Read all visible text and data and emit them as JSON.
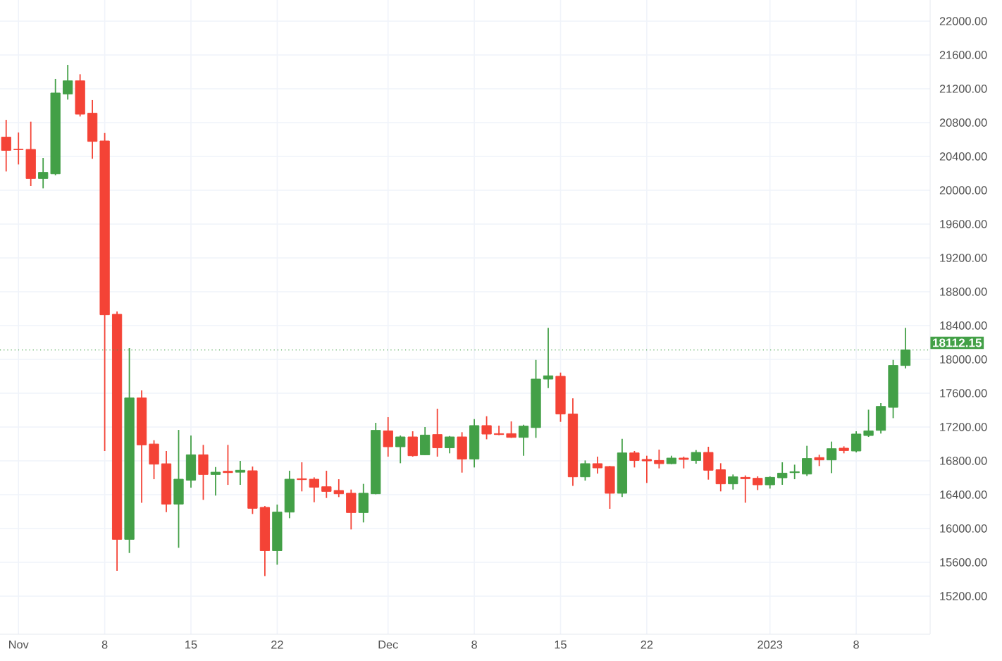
{
  "chart_data": {
    "type": "candlestick",
    "x": [
      "2022-10-31",
      "2022-11-01",
      "2022-11-02",
      "2022-11-03",
      "2022-11-04",
      "2022-11-05",
      "2022-11-06",
      "2022-11-07",
      "2022-11-08",
      "2022-11-09",
      "2022-11-10",
      "2022-11-11",
      "2022-11-12",
      "2022-11-13",
      "2022-11-14",
      "2022-11-15",
      "2022-11-16",
      "2022-11-17",
      "2022-11-18",
      "2022-11-19",
      "2022-11-20",
      "2022-11-21",
      "2022-11-22",
      "2022-11-23",
      "2022-11-24",
      "2022-11-25",
      "2022-11-26",
      "2022-11-27",
      "2022-11-28",
      "2022-11-29",
      "2022-11-30",
      "2022-12-01",
      "2022-12-02",
      "2022-12-03",
      "2022-12-04",
      "2022-12-05",
      "2022-12-06",
      "2022-12-07",
      "2022-12-08",
      "2022-12-09",
      "2022-12-10",
      "2022-12-11",
      "2022-12-12",
      "2022-12-13",
      "2022-12-14",
      "2022-12-15",
      "2022-12-16",
      "2022-12-17",
      "2022-12-18",
      "2022-12-19",
      "2022-12-20",
      "2022-12-21",
      "2022-12-22",
      "2022-12-23",
      "2022-12-24",
      "2022-12-25",
      "2022-12-26",
      "2022-12-27",
      "2022-12-28",
      "2022-12-29",
      "2022-12-30",
      "2022-12-31",
      "2023-01-01",
      "2023-01-02",
      "2023-01-03",
      "2023-01-04",
      "2023-01-05",
      "2023-01-06",
      "2023-01-07",
      "2023-01-08",
      "2023-01-09",
      "2023-01-10",
      "2023-01-11",
      "2023-01-12"
    ],
    "ohlc": [
      [
        20628,
        20833,
        20222,
        20472
      ],
      [
        20485,
        20683,
        20305,
        20480
      ],
      [
        20483,
        20811,
        20050,
        20139
      ],
      [
        20139,
        20383,
        20022,
        20211
      ],
      [
        20194,
        21317,
        20178,
        21150
      ],
      [
        21139,
        21483,
        21072,
        21294
      ],
      [
        21294,
        21372,
        20872,
        20900
      ],
      [
        20911,
        21067,
        20372,
        20578
      ],
      [
        20583,
        20678,
        16916,
        18528
      ],
      [
        18533,
        18566,
        15500,
        15872
      ],
      [
        15872,
        18133,
        15711,
        17544
      ],
      [
        17544,
        17633,
        16305,
        16989
      ],
      [
        16999,
        17044,
        16583,
        16761
      ],
      [
        16766,
        16916,
        16194,
        16289
      ],
      [
        16289,
        17166,
        15772,
        16583
      ],
      [
        16572,
        17100,
        16483,
        16872
      ],
      [
        16872,
        16989,
        16339,
        16639
      ],
      [
        16639,
        16727,
        16389,
        16666
      ],
      [
        16677,
        16989,
        16516,
        16661
      ],
      [
        16666,
        16800,
        16516,
        16689
      ],
      [
        16683,
        16733,
        16172,
        16239
      ],
      [
        16250,
        16266,
        15438,
        15738
      ],
      [
        15738,
        16283,
        15572,
        16194
      ],
      [
        16194,
        16683,
        16122,
        16583
      ],
      [
        16589,
        16783,
        16439,
        16578
      ],
      [
        16583,
        16605,
        16311,
        16489
      ],
      [
        16494,
        16683,
        16361,
        16439
      ],
      [
        16450,
        16583,
        16372,
        16411
      ],
      [
        16417,
        16461,
        15989,
        16189
      ],
      [
        16189,
        16528,
        16072,
        16417
      ],
      [
        16411,
        17250,
        16405,
        17161
      ],
      [
        17155,
        17317,
        16850,
        16967
      ],
      [
        16967,
        17100,
        16772,
        17083
      ],
      [
        17083,
        17150,
        16850,
        16861
      ],
      [
        16872,
        17200,
        16870,
        17105
      ],
      [
        17111,
        17417,
        16850,
        16955
      ],
      [
        16955,
        17094,
        16889,
        17083
      ],
      [
        17083,
        17139,
        16661,
        16822
      ],
      [
        16822,
        17294,
        16722,
        17217
      ],
      [
        17217,
        17328,
        17055,
        17117
      ],
      [
        17122,
        17217,
        17105,
        17111
      ],
      [
        17122,
        17267,
        17072,
        17078
      ],
      [
        17078,
        17228,
        16861,
        17211
      ],
      [
        17194,
        17994,
        17072,
        17767
      ],
      [
        17767,
        18372,
        17661,
        17806
      ],
      [
        17800,
        17844,
        17261,
        17355
      ],
      [
        17355,
        17539,
        16505,
        16611
      ],
      [
        16611,
        16805,
        16567,
        16767
      ],
      [
        16767,
        16850,
        16650,
        16717
      ],
      [
        16733,
        16740,
        16233,
        16417
      ],
      [
        16417,
        17061,
        16372,
        16894
      ],
      [
        16894,
        16917,
        16722,
        16805
      ],
      [
        16817,
        16861,
        16539,
        16800
      ],
      [
        16805,
        16933,
        16711,
        16767
      ],
      [
        16767,
        16861,
        16761,
        16833
      ],
      [
        16833,
        16850,
        16711,
        16817
      ],
      [
        16805,
        16928,
        16767,
        16900
      ],
      [
        16900,
        16967,
        16578,
        16689
      ],
      [
        16695,
        16772,
        16439,
        16528
      ],
      [
        16528,
        16639,
        16461,
        16611
      ],
      [
        16605,
        16628,
        16305,
        16589
      ],
      [
        16594,
        16617,
        16455,
        16517
      ],
      [
        16517,
        16617,
        16472,
        16605
      ],
      [
        16600,
        16783,
        16517,
        16655
      ],
      [
        16661,
        16755,
        16583,
        16672
      ],
      [
        16644,
        16978,
        16622,
        16828
      ],
      [
        16839,
        16872,
        16739,
        16811
      ],
      [
        16811,
        17028,
        16655,
        16944
      ],
      [
        16950,
        16972,
        16889,
        16922
      ],
      [
        16917,
        17150,
        16900,
        17117
      ],
      [
        17100,
        17405,
        17083,
        17155
      ],
      [
        17161,
        17483,
        17122,
        17444
      ],
      [
        17433,
        17994,
        17305,
        17928
      ],
      [
        17928,
        18372,
        17894,
        18112.15
      ]
    ],
    "colors": [
      "#f44336",
      "#f44336",
      "#f44336",
      "#43a047",
      "#43a047",
      "#43a047",
      "#f44336",
      "#f44336",
      "#f44336",
      "#f44336",
      "#43a047",
      "#f44336",
      "#f44336",
      "#f44336",
      "#43a047",
      "#43a047",
      "#f44336",
      "#43a047",
      "#f44336",
      "#43a047",
      "#f44336",
      "#f44336",
      "#43a047",
      "#43a047",
      "#f44336",
      "#f44336",
      "#f44336",
      "#f44336",
      "#f44336",
      "#43a047",
      "#43a047",
      "#f44336",
      "#43a047",
      "#f44336",
      "#43a047",
      "#f44336",
      "#43a047",
      "#f44336",
      "#43a047",
      "#f44336",
      "#f44336",
      "#f44336",
      "#43a047",
      "#43a047",
      "#43a047",
      "#f44336",
      "#f44336",
      "#43a047",
      "#f44336",
      "#f44336",
      "#43a047",
      "#f44336",
      "#f44336",
      "#f44336",
      "#43a047",
      "#f44336",
      "#43a047",
      "#f44336",
      "#f44336",
      "#43a047",
      "#f44336",
      "#f44336",
      "#43a047",
      "#43a047",
      "#43a047",
      "#43a047",
      "#f44336",
      "#43a047",
      "#f44336",
      "#43a047",
      "#43a047",
      "#43a047",
      "#43a047",
      "#43a047"
    ],
    "xlim": [
      "2022-10-30T12:00",
      "2023-01-14T00:00"
    ],
    "xticks": [
      {
        "value": "2022-11-01",
        "label": "Nov"
      },
      {
        "value": "2022-11-08",
        "label": "8"
      },
      {
        "value": "2022-11-15",
        "label": "15"
      },
      {
        "value": "2022-11-22",
        "label": "22"
      },
      {
        "value": "2022-12-01",
        "label": "Dec"
      },
      {
        "value": "2022-12-08",
        "label": "8"
      },
      {
        "value": "2022-12-15",
        "label": "15"
      },
      {
        "value": "2022-12-22",
        "label": "22"
      },
      {
        "value": "2023-01-01",
        "label": "2023"
      },
      {
        "value": "2023-01-08",
        "label": "8"
      }
    ],
    "ylim": [
      14750,
      22250
    ],
    "yticks": [
      {
        "value": 15200,
        "label": "15200.00"
      },
      {
        "value": 15600,
        "label": "15600.00"
      },
      {
        "value": 16000,
        "label": "16000.00"
      },
      {
        "value": 16400,
        "label": "16400.00"
      },
      {
        "value": 16800,
        "label": "16800.00"
      },
      {
        "value": 17200,
        "label": "17200.00"
      },
      {
        "value": 17600,
        "label": "17600.00"
      },
      {
        "value": 18000,
        "label": "18000.00"
      },
      {
        "value": 18400,
        "label": "18400.00"
      },
      {
        "value": 18800,
        "label": "18800.00"
      },
      {
        "value": 19200,
        "label": "19200.00"
      },
      {
        "value": 19600,
        "label": "19600.00"
      },
      {
        "value": 20000,
        "label": "20000.00"
      },
      {
        "value": 20400,
        "label": "20400.00"
      },
      {
        "value": 20800,
        "label": "20800.00"
      },
      {
        "value": 21200,
        "label": "21200.00"
      },
      {
        "value": 21600,
        "label": "21600.00"
      },
      {
        "value": 22000,
        "label": "22000.00"
      }
    ],
    "ref_lines": [
      {
        "axis": "y",
        "value": 18112.15,
        "label": "18112.15",
        "color": "#43a047",
        "line_style": "dotted"
      }
    ],
    "grid": true
  }
}
